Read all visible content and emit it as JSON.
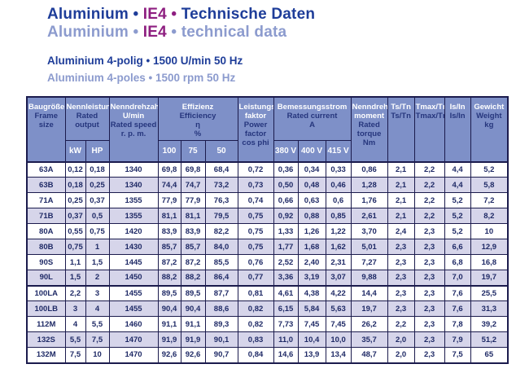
{
  "page": {
    "title_de": {
      "word1": "Aluminium",
      "sep1": "•",
      "ie": "IE4",
      "sep2": "•",
      "word2": "Technische Daten"
    },
    "title_en": {
      "word1": "Aluminium",
      "sep1": "•",
      "ie": "IE4",
      "sep2": "•",
      "word2": "technical data"
    },
    "subtitle_de": "Aluminium 4-polig • 1500 U/min 50 Hz",
    "subtitle_en": "Aluminium 4-poles • 1500 rpm 50 Hz"
  },
  "colors": {
    "title_blue": "#1e3d99",
    "title_light_blue": "#8c9bce",
    "ie4_purple": "#8e1f80",
    "header_bg": "#7e90c8",
    "header_text_de": "#ffffff",
    "header_text_en": "#26367d",
    "border_navy": "#1b1b4d",
    "row_stripe": "#d6d5ea",
    "cell_text": "#1f2a66"
  },
  "table": {
    "headers": {
      "frame": {
        "de": "Baugröße",
        "en": "Frame size"
      },
      "output": {
        "de": "Nennleistung",
        "en": "Rated output",
        "units": [
          "kW",
          "HP"
        ]
      },
      "speed": {
        "de1": "Nenndrehzahl",
        "de2": "U/min",
        "en1": "Rated speed",
        "en2": "r. p. m."
      },
      "efficiency": {
        "de": "Effizienz",
        "en1": "Efficiency",
        "en2": "η",
        "en3": "%",
        "units": [
          "100",
          "75",
          "50"
        ]
      },
      "powerfactor": {
        "de1": "Leistungs-",
        "de2": "faktor",
        "en1": "Power",
        "en2": "factor",
        "en3": "cos phi"
      },
      "current": {
        "de": "Bemessungsstrom",
        "en1": "Rated current",
        "en2": "A",
        "units": [
          "380 V",
          "400 V",
          "415 V"
        ]
      },
      "torque": {
        "de1": "Nenndreh-",
        "de2": "moment",
        "en1": "Rated",
        "en2": "torque",
        "en3": "Nm"
      },
      "ts": {
        "de": "Ts/Tn",
        "en": "Ts/Tn"
      },
      "tmax": {
        "de": "Tmax/Tn",
        "en": "Tmax/Tn"
      },
      "is": {
        "de": "Is/In",
        "en": "Is/In"
      },
      "weight": {
        "de": "Gewicht",
        "en1": "Weight",
        "en2": "kg"
      }
    },
    "rows": [
      [
        "63A",
        "0,12",
        "0,18",
        "1340",
        "69,8",
        "69,8",
        "68,4",
        "0,72",
        "0,36",
        "0,34",
        "0,33",
        "0,86",
        "2,1",
        "2,2",
        "4,4",
        "5,2"
      ],
      [
        "63B",
        "0,18",
        "0,25",
        "1340",
        "74,4",
        "74,7",
        "73,2",
        "0,73",
        "0,50",
        "0,48",
        "0,46",
        "1,28",
        "2,1",
        "2,2",
        "4,4",
        "5,8"
      ],
      [
        "71A",
        "0,25",
        "0,37",
        "1355",
        "77,9",
        "77,9",
        "76,3",
        "0,74",
        "0,66",
        "0,63",
        "0,6",
        "1,76",
        "2,1",
        "2,2",
        "5,2",
        "7,2"
      ],
      [
        "71B",
        "0,37",
        "0,5",
        "1355",
        "81,1",
        "81,1",
        "79,5",
        "0,75",
        "0,92",
        "0,88",
        "0,85",
        "2,61",
        "2,1",
        "2,2",
        "5,2",
        "8,2"
      ],
      [
        "80A",
        "0,55",
        "0,75",
        "1420",
        "83,9",
        "83,9",
        "82,2",
        "0,75",
        "1,33",
        "1,26",
        "1,22",
        "3,70",
        "2,4",
        "2,3",
        "5,2",
        "10"
      ],
      [
        "80B",
        "0,75",
        "1",
        "1430",
        "85,7",
        "85,7",
        "84,0",
        "0,75",
        "1,77",
        "1,68",
        "1,62",
        "5,01",
        "2,3",
        "2,3",
        "6,6",
        "12,9"
      ],
      [
        "90S",
        "1,1",
        "1,5",
        "1445",
        "87,2",
        "87,2",
        "85,5",
        "0,76",
        "2,52",
        "2,40",
        "2,31",
        "7,27",
        "2,3",
        "2,3",
        "6,8",
        "16,8"
      ],
      [
        "90L",
        "1,5",
        "2",
        "1450",
        "88,2",
        "88,2",
        "86,4",
        "0,77",
        "3,36",
        "3,19",
        "3,07",
        "9,88",
        "2,3",
        "2,3",
        "7,0",
        "19,7"
      ],
      [
        "100LA",
        "2,2",
        "3",
        "1455",
        "89,5",
        "89,5",
        "87,7",
        "0,81",
        "4,61",
        "4,38",
        "4,22",
        "14,4",
        "2,3",
        "2,3",
        "7,6",
        "25,5"
      ],
      [
        "100LB",
        "3",
        "4",
        "1455",
        "90,4",
        "90,4",
        "88,6",
        "0,82",
        "6,15",
        "5,84",
        "5,63",
        "19,7",
        "2,3",
        "2,3",
        "7,6",
        "31,3"
      ],
      [
        "112M",
        "4",
        "5,5",
        "1460",
        "91,1",
        "91,1",
        "89,3",
        "0,82",
        "7,73",
        "7,45",
        "7,45",
        "26,2",
        "2,2",
        "2,3",
        "7,8",
        "39,2"
      ],
      [
        "132S",
        "5,5",
        "7,5",
        "1470",
        "91,9",
        "91,9",
        "90,1",
        "0,83",
        "11,0",
        "10,4",
        "10,0",
        "35,7",
        "2,0",
        "2,3",
        "7,9",
        "51,2"
      ],
      [
        "132M",
        "7,5",
        "10",
        "1470",
        "92,6",
        "92,6",
        "90,7",
        "0,84",
        "14,6",
        "13,9",
        "13,4",
        "48,7",
        "2,0",
        "2,3",
        "7,5",
        "65"
      ]
    ]
  }
}
